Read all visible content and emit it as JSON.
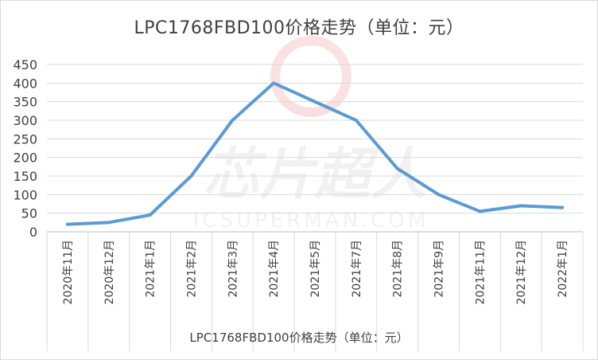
{
  "chart_data": {
    "type": "line",
    "title": "LPC1768FBD100价格走势（单位：元）",
    "categories": [
      "2020年11月",
      "2020年12月",
      "2021年1月",
      "2021年2月",
      "2021年3月",
      "2021年4月",
      "2021年5月",
      "2021年7月",
      "2021年8月",
      "2021年9月",
      "2021年11月",
      "2021年12月",
      "2022年1月"
    ],
    "series": [
      {
        "name": "LPC1768FBD100价格走势（单位：元）",
        "values": [
          20,
          25,
          45,
          150,
          300,
          400,
          350,
          300,
          170,
          100,
          55,
          70,
          65
        ],
        "color": "#5b9bd5"
      }
    ],
    "ylim": [
      0,
      450
    ],
    "yticks": [
      0,
      50,
      100,
      150,
      200,
      250,
      300,
      350,
      400,
      450
    ],
    "grid": true,
    "legend_position": "bottom"
  },
  "watermark": {
    "brand": "芯片超人",
    "site": "ICSUPERMAN.COM"
  }
}
